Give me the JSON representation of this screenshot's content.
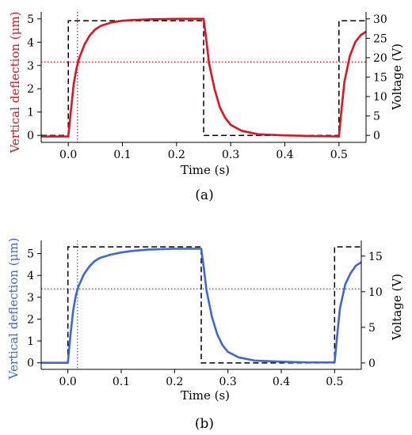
{
  "chart_data": [
    {
      "type": "line",
      "panel_label": "(a)",
      "xlabel": "Time (s)",
      "ylabel_left": "Vertical deflection (μm)",
      "ylabel_right": "Voltage (V)",
      "xlim": [
        -0.05,
        0.55
      ],
      "ylim_left": [
        -0.3,
        5.3
      ],
      "ylim_right": [
        -1.8,
        31.8
      ],
      "x_ticks": [
        "0.0",
        "0.1",
        "0.2",
        "0.3",
        "0.4",
        "0.5"
      ],
      "x_tick_values": [
        0.0,
        0.1,
        0.2,
        0.3,
        0.4,
        0.5
      ],
      "y_left_ticks": [
        "0",
        "1",
        "2",
        "3",
        "4",
        "5"
      ],
      "y_left_tick_values": [
        0,
        1,
        2,
        3,
        4,
        5
      ],
      "y_right_ticks": [
        "0",
        "5",
        "10",
        "15",
        "20",
        "25",
        "30"
      ],
      "y_right_tick_values": [
        0,
        5,
        10,
        15,
        20,
        25,
        30
      ],
      "accent_color": "#e8101e",
      "deflection_series": {
        "axis": "left",
        "color": "#e8101e",
        "x": [
          -0.05,
          0.0,
          0.005,
          0.01,
          0.015,
          0.02,
          0.03,
          0.04,
          0.05,
          0.06,
          0.08,
          0.1,
          0.12,
          0.15,
          0.2,
          0.25,
          0.255,
          0.26,
          0.27,
          0.28,
          0.29,
          0.3,
          0.32,
          0.35,
          0.4,
          0.45,
          0.5,
          0.505,
          0.51,
          0.52,
          0.53,
          0.54,
          0.55
        ],
        "values": [
          -0.05,
          -0.05,
          1.1,
          2.2,
          2.85,
          3.3,
          3.9,
          4.3,
          4.55,
          4.7,
          4.85,
          4.92,
          4.95,
          4.98,
          5.0,
          5.0,
          4.1,
          3.1,
          2.0,
          1.2,
          0.75,
          0.45,
          0.2,
          0.05,
          0.0,
          -0.03,
          -0.05,
          1.2,
          2.3,
          3.4,
          4.0,
          4.3,
          4.45
        ]
      },
      "voltage_series": {
        "axis": "right",
        "color": "#000000",
        "style": "dashed",
        "x": [
          -0.05,
          0.0,
          0.0,
          0.25,
          0.25,
          0.5,
          0.5,
          0.55
        ],
        "values": [
          0,
          0,
          29.5,
          29.5,
          0,
          0,
          29.5,
          29.5
        ]
      },
      "reference_lines": {
        "color": "#e8101e",
        "style": "dotted",
        "hline_left": 3.15,
        "vline_x": 0.017
      }
    },
    {
      "type": "line",
      "panel_label": "(b)",
      "xlabel": "Time (s)",
      "ylabel_left": "Vertical deflection (μm)",
      "ylabel_right": "Voltage (V)",
      "xlim": [
        -0.05,
        0.55
      ],
      "ylim_left": [
        -0.3,
        5.6
      ],
      "ylim_right": [
        -0.9,
        17.2
      ],
      "x_ticks": [
        "0.0",
        "0.1",
        "0.2",
        "0.3",
        "0.4",
        "0.5"
      ],
      "x_tick_values": [
        0.0,
        0.1,
        0.2,
        0.3,
        0.4,
        0.5
      ],
      "y_left_ticks": [
        "0",
        "1",
        "2",
        "3",
        "4",
        "5"
      ],
      "y_left_tick_values": [
        0,
        1,
        2,
        3,
        4,
        5
      ],
      "y_right_ticks": [
        "0",
        "5",
        "10",
        "15"
      ],
      "y_right_tick_values": [
        0,
        5,
        10,
        15
      ],
      "accent_color": "#3b67d8",
      "deflection_series": {
        "axis": "left",
        "color": "#3b67d8",
        "x": [
          -0.05,
          0.0,
          0.005,
          0.01,
          0.015,
          0.02,
          0.03,
          0.04,
          0.05,
          0.06,
          0.08,
          0.1,
          0.12,
          0.15,
          0.2,
          0.25,
          0.255,
          0.26,
          0.27,
          0.28,
          0.29,
          0.3,
          0.32,
          0.35,
          0.4,
          0.45,
          0.5,
          0.505,
          0.51,
          0.52,
          0.53,
          0.54,
          0.55
        ],
        "values": [
          0.0,
          0.0,
          1.3,
          2.4,
          3.1,
          3.5,
          4.05,
          4.4,
          4.65,
          4.8,
          4.95,
          5.05,
          5.12,
          5.18,
          5.22,
          5.22,
          4.3,
          3.3,
          2.1,
          1.3,
          0.8,
          0.5,
          0.25,
          0.1,
          0.05,
          0.02,
          0.02,
          1.3,
          2.5,
          3.6,
          4.1,
          4.45,
          4.6
        ]
      },
      "voltage_series": {
        "axis": "right",
        "color": "#000000",
        "style": "dashed",
        "x": [
          -0.05,
          0.0,
          0.0,
          0.25,
          0.25,
          0.5,
          0.5,
          0.55
        ],
        "values": [
          0,
          0,
          16.3,
          16.3,
          0,
          0,
          16.3,
          16.3
        ]
      },
      "reference_lines": {
        "color": "#3b67d8",
        "style": "dotted",
        "hline_left": 3.38,
        "vline_x": 0.018
      }
    }
  ]
}
